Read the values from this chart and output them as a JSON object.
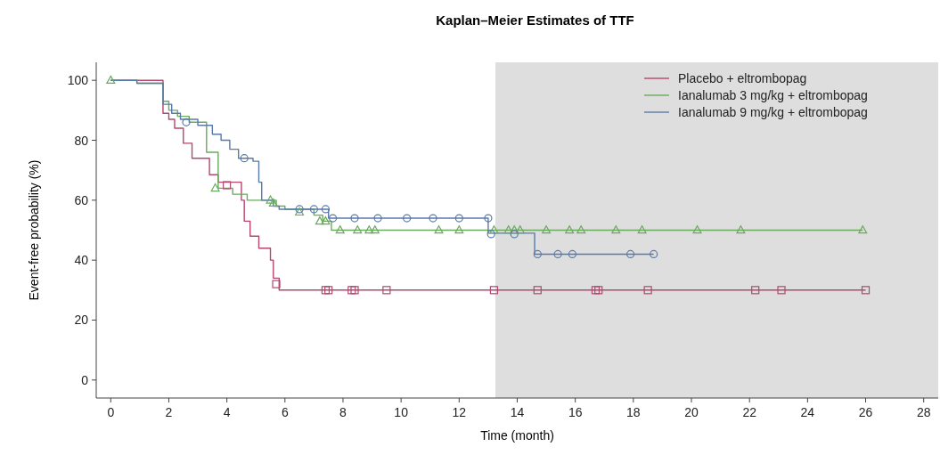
{
  "chart_data": {
    "type": "step",
    "title": "Kaplan–Meier Estimates of TTF",
    "xlabel": "Time (month)",
    "ylabel": "Event-free probability (%)",
    "xlim": [
      -0.5,
      28.5
    ],
    "ylim": [
      -6,
      106
    ],
    "xticks": [
      0,
      2,
      4,
      6,
      8,
      10,
      12,
      14,
      16,
      18,
      20,
      22,
      24,
      26,
      28
    ],
    "yticks": [
      0,
      20,
      40,
      60,
      80,
      100
    ],
    "grid": false,
    "legend": "top right",
    "line_style": "solid",
    "bands": [
      {
        "axis": "x",
        "from": 13.25,
        "to": 28.5,
        "color": "#dedede"
      }
    ],
    "series": [
      {
        "name": "Placebo + eltrombopag",
        "color": "#b5466f",
        "marker": "none",
        "x": [
          0,
          1.8,
          2.0,
          2.2,
          2.5,
          2.8,
          3.4,
          3.7,
          4.5,
          4.6,
          4.8,
          5.1,
          5.5,
          5.6,
          5.8,
          26.0
        ],
        "values": [
          100,
          89,
          87,
          84,
          79,
          74,
          68.5,
          66,
          60,
          53,
          48,
          44,
          40,
          34,
          30,
          30
        ]
      },
      {
        "name": "Ianalumab 3 mg/kg + eltrombopag",
        "color": "#6aaa5c",
        "marker": "none",
        "x": [
          0,
          0.9,
          1.8,
          2.0,
          2.3,
          2.7,
          3.3,
          3.7,
          4.2,
          4.7,
          5.7,
          6.0,
          7.0,
          7.3,
          7.6,
          25.9
        ],
        "values": [
          100,
          99,
          93,
          90,
          88,
          86,
          76,
          64,
          62,
          60,
          58,
          57,
          55,
          53,
          50,
          50
        ]
      },
      {
        "name": "Ianalumab 9 mg/kg + eltrombopag",
        "color": "#5a7aaa",
        "marker": "none",
        "x": [
          0,
          0.9,
          1.8,
          2.1,
          2.4,
          3.0,
          3.5,
          3.8,
          4.1,
          4.4,
          4.9,
          5.1,
          5.2,
          5.6,
          5.8,
          7.5,
          13.0,
          14.6,
          18.7
        ],
        "values": [
          100,
          99,
          92,
          89,
          87,
          85,
          82,
          80,
          77,
          74,
          73,
          66,
          60,
          58,
          57,
          54,
          49,
          42,
          42
        ]
      },
      {
        "color": "#b5466f",
        "type": "scatter",
        "marker": "square",
        "x": [
          4.0,
          5.7,
          7.4,
          7.5,
          8.3,
          8.4,
          9.5,
          13.2,
          14.7,
          16.7,
          16.8,
          18.5,
          22.2,
          23.1,
          26.0
        ],
        "values": [
          65,
          32,
          30,
          30,
          30,
          30,
          30,
          30,
          30,
          30,
          30,
          30,
          30,
          30,
          30
        ]
      },
      {
        "color": "#6aaa5c",
        "type": "scatter",
        "marker": "triangle",
        "x": [
          0,
          3.6,
          5.5,
          5.6,
          6.5,
          7.2,
          7.4,
          7.9,
          8.5,
          8.9,
          9.1,
          11.3,
          12.0,
          13.2,
          13.7,
          13.9,
          14.1,
          15.0,
          15.8,
          16.2,
          17.4,
          18.3,
          20.2,
          21.7,
          25.9
        ],
        "values": [
          100,
          64,
          60,
          59,
          56,
          53,
          53,
          50,
          50,
          50,
          50,
          50,
          50,
          50,
          50,
          50,
          50,
          50,
          50,
          50,
          50,
          50,
          50,
          50,
          50
        ]
      },
      {
        "color": "#5a7aaa",
        "type": "scatter",
        "marker": "circle",
        "x": [
          2.6,
          4.6,
          6.5,
          7.0,
          7.4,
          7.65,
          8.4,
          9.2,
          10.2,
          11.1,
          12.0,
          13.0,
          13.1,
          13.9,
          14.7,
          15.4,
          15.9,
          17.9,
          18.7
        ],
        "values": [
          86,
          74,
          57,
          57,
          57,
          54,
          54,
          54,
          54,
          54,
          54,
          54,
          48.7,
          48.7,
          42,
          42,
          42,
          42,
          42
        ]
      }
    ]
  }
}
